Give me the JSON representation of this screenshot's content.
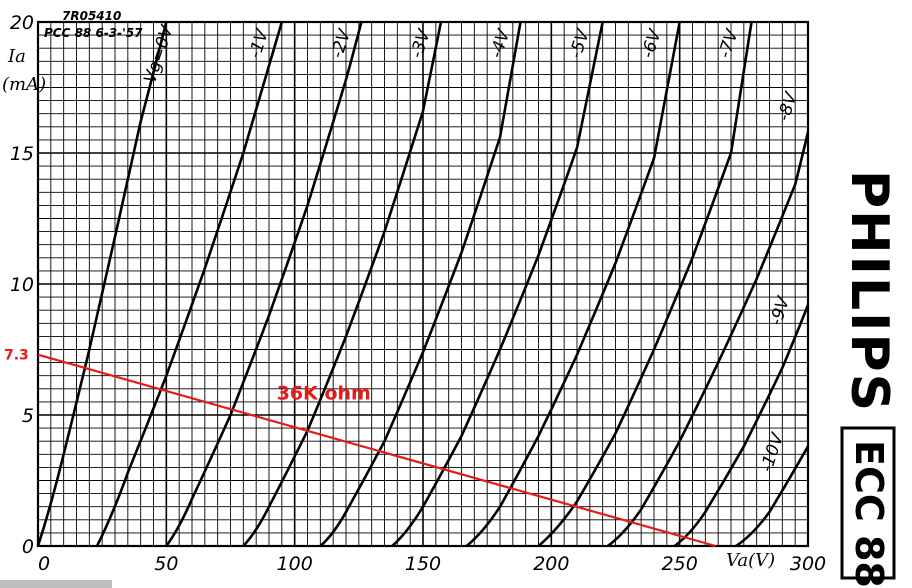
{
  "header": {
    "code": "7R05410",
    "tube_date": "PCC 88  6-3-'57"
  },
  "branding": {
    "manufacturer": "PHILIPS",
    "model": "ECC 88"
  },
  "colors": {
    "grid": "#000000",
    "load_line": "#e31b1b"
  },
  "chart_data": {
    "type": "line",
    "xlim": [
      0,
      300
    ],
    "ylim": [
      0,
      20
    ],
    "xlabel": "Va(V)",
    "ylabel_symbol": "Ia",
    "ylabel_unit": "(mA)",
    "x_ticks": [
      {
        "value": 0,
        "label": "0"
      },
      {
        "value": 50,
        "label": "50"
      },
      {
        "value": 100,
        "label": "100"
      },
      {
        "value": 150,
        "label": "150"
      },
      {
        "value": 200,
        "label": "200"
      },
      {
        "value": 250,
        "label": "250"
      },
      {
        "value": 300,
        "label": "300"
      }
    ],
    "y_ticks": [
      {
        "value": 0,
        "label": "0"
      },
      {
        "value": 5,
        "label": "5"
      },
      {
        "value": 10,
        "label": "10"
      },
      {
        "value": 15,
        "label": "15"
      },
      {
        "value": 20,
        "label": "20"
      }
    ],
    "grid": true,
    "series": [
      {
        "name": "Vg=0V",
        "x": [
          0,
          10,
          20,
          30,
          40,
          50
        ],
        "y": [
          0,
          3.5,
          7.5,
          11.8,
          16.2,
          20
        ]
      },
      {
        "name": "-1V",
        "x": [
          23,
          35,
          50,
          65,
          80,
          95
        ],
        "y": [
          0,
          2.8,
          6.5,
          10.6,
          15,
          20
        ]
      },
      {
        "name": "-2V",
        "x": [
          50,
          60,
          75,
          90,
          105,
          120,
          126
        ],
        "y": [
          0,
          1.8,
          5.0,
          8.8,
          13.0,
          17.8,
          20
        ]
      },
      {
        "name": "-3V",
        "x": [
          80,
          90,
          105,
          120,
          135,
          150,
          157
        ],
        "y": [
          0,
          1.5,
          4.4,
          8.0,
          12.0,
          16.6,
          20
        ]
      },
      {
        "name": "-4V",
        "x": [
          110,
          120,
          135,
          150,
          165,
          180,
          188
        ],
        "y": [
          0,
          1.3,
          4.0,
          7.4,
          11.2,
          15.6,
          20
        ]
      },
      {
        "name": "-5V",
        "x": [
          138,
          150,
          165,
          180,
          195,
          210,
          220
        ],
        "y": [
          0,
          1.5,
          4.2,
          7.5,
          11.1,
          15.2,
          20
        ]
      },
      {
        "name": "-6V",
        "x": [
          167,
          180,
          195,
          210,
          225,
          240,
          250
        ],
        "y": [
          0,
          1.5,
          4.2,
          7.3,
          10.8,
          14.8,
          20
        ]
      },
      {
        "name": "-7V",
        "x": [
          195,
          210,
          225,
          240,
          255,
          270,
          278
        ],
        "y": [
          0,
          1.7,
          4.3,
          7.5,
          11.0,
          15.0,
          20
        ]
      },
      {
        "name": "-8V",
        "x": [
          222,
          235,
          250,
          265,
          280,
          295,
          300
        ],
        "y": [
          0,
          1.4,
          4.0,
          7.0,
          10.2,
          13.8,
          15.8
        ]
      },
      {
        "name": "-9V",
        "x": [
          248,
          260,
          275,
          290,
          300
        ],
        "y": [
          0,
          1.3,
          3.8,
          6.8,
          9.2
        ]
      },
      {
        "name": "-10V",
        "x": [
          272,
          285,
          300
        ],
        "y": [
          0,
          1.3,
          3.8
        ]
      }
    ],
    "curve_labels": [
      {
        "text": "Vg=0V",
        "x": 49,
        "y": 18.7
      },
      {
        "text": "-1V",
        "x": 88,
        "y": 19.1
      },
      {
        "text": "-2V",
        "x": 120,
        "y": 19.1
      },
      {
        "text": "-3V",
        "x": 151,
        "y": 19.1
      },
      {
        "text": "-4V",
        "x": 182,
        "y": 19.1
      },
      {
        "text": "-5V",
        "x": 213,
        "y": 19.1
      },
      {
        "text": "-6V",
        "x": 241,
        "y": 19.1
      },
      {
        "text": "-7V",
        "x": 271,
        "y": 19.1
      },
      {
        "text": "-8V",
        "x": 294,
        "y": 16.7
      },
      {
        "text": "-9V",
        "x": 291,
        "y": 8.9
      },
      {
        "text": "-10V",
        "x": 288,
        "y": 3.5
      }
    ],
    "load_line": {
      "label": "36K ohm",
      "intercept_label": "7.3",
      "points": [
        [
          0,
          7.3
        ],
        [
          264,
          0
        ]
      ],
      "label_at": [
        93,
        5.6
      ]
    }
  }
}
